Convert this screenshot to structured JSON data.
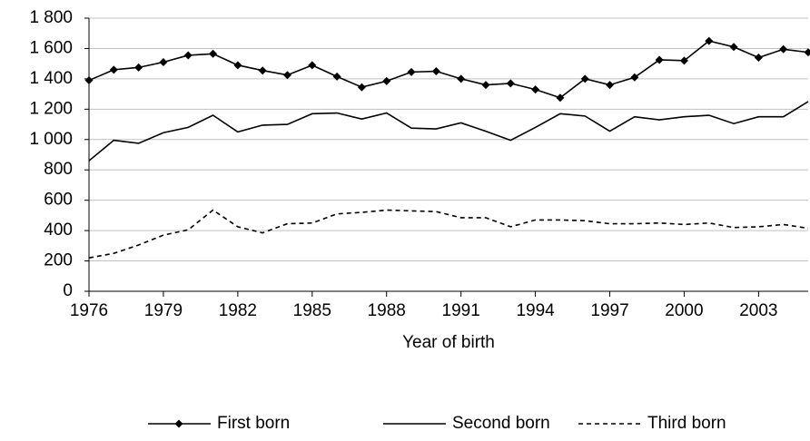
{
  "chart_data": {
    "type": "line",
    "x": [
      1976,
      1977,
      1978,
      1979,
      1980,
      1981,
      1982,
      1983,
      1984,
      1985,
      1986,
      1987,
      1988,
      1989,
      1990,
      1991,
      1992,
      1993,
      1994,
      1995,
      1996,
      1997,
      1998,
      1999,
      2000,
      2001,
      2002,
      2003,
      2004,
      2005
    ],
    "x_label": "Year of birth",
    "xlim": [
      1976,
      2005
    ],
    "xticks": [
      1976,
      1979,
      1982,
      1985,
      1988,
      1991,
      1994,
      1997,
      2000,
      2003
    ],
    "ylim": [
      0,
      1800
    ],
    "yticks": [
      0,
      200,
      400,
      600,
      800,
      {
        "value": 1000,
        "label": "1 000"
      },
      {
        "value": 1200,
        "label": "1 200"
      },
      {
        "value": 1400,
        "label": "1 400"
      },
      {
        "value": 1600,
        "label": "1 600"
      },
      {
        "value": 1800,
        "label": "1 800"
      }
    ],
    "grid": true,
    "legend": "bottom",
    "series": [
      {
        "name": "First born",
        "color": "#000000",
        "marker": "diamond",
        "line_style": "solid",
        "values": [
          1390,
          1460,
          1475,
          1510,
          1555,
          1565,
          1490,
          1455,
          1425,
          1490,
          1415,
          1345,
          1385,
          1445,
          1450,
          1400,
          1360,
          1370,
          1330,
          1275,
          1400,
          1360,
          1410,
          1525,
          1520,
          1650,
          1610,
          1540,
          1595,
          1575
        ]
      },
      {
        "name": "Second born",
        "color": "#000000",
        "line_style": "solid",
        "values": [
          860,
          995,
          975,
          1045,
          1080,
          1160,
          1050,
          1095,
          1100,
          1170,
          1175,
          1135,
          1175,
          1075,
          1070,
          1110,
          1055,
          995,
          1080,
          1170,
          1155,
          1055,
          1150,
          1130,
          1150,
          1160,
          1105,
          1150,
          1150,
          1250
        ]
      },
      {
        "name": "Third born",
        "color": "#000000",
        "line_style": "dashed",
        "values": [
          220,
          250,
          305,
          370,
          405,
          535,
          425,
          385,
          445,
          450,
          510,
          520,
          535,
          530,
          525,
          485,
          485,
          425,
          470,
          470,
          465,
          445,
          445,
          450,
          440,
          450,
          420,
          425,
          440,
          415
        ]
      }
    ]
  }
}
